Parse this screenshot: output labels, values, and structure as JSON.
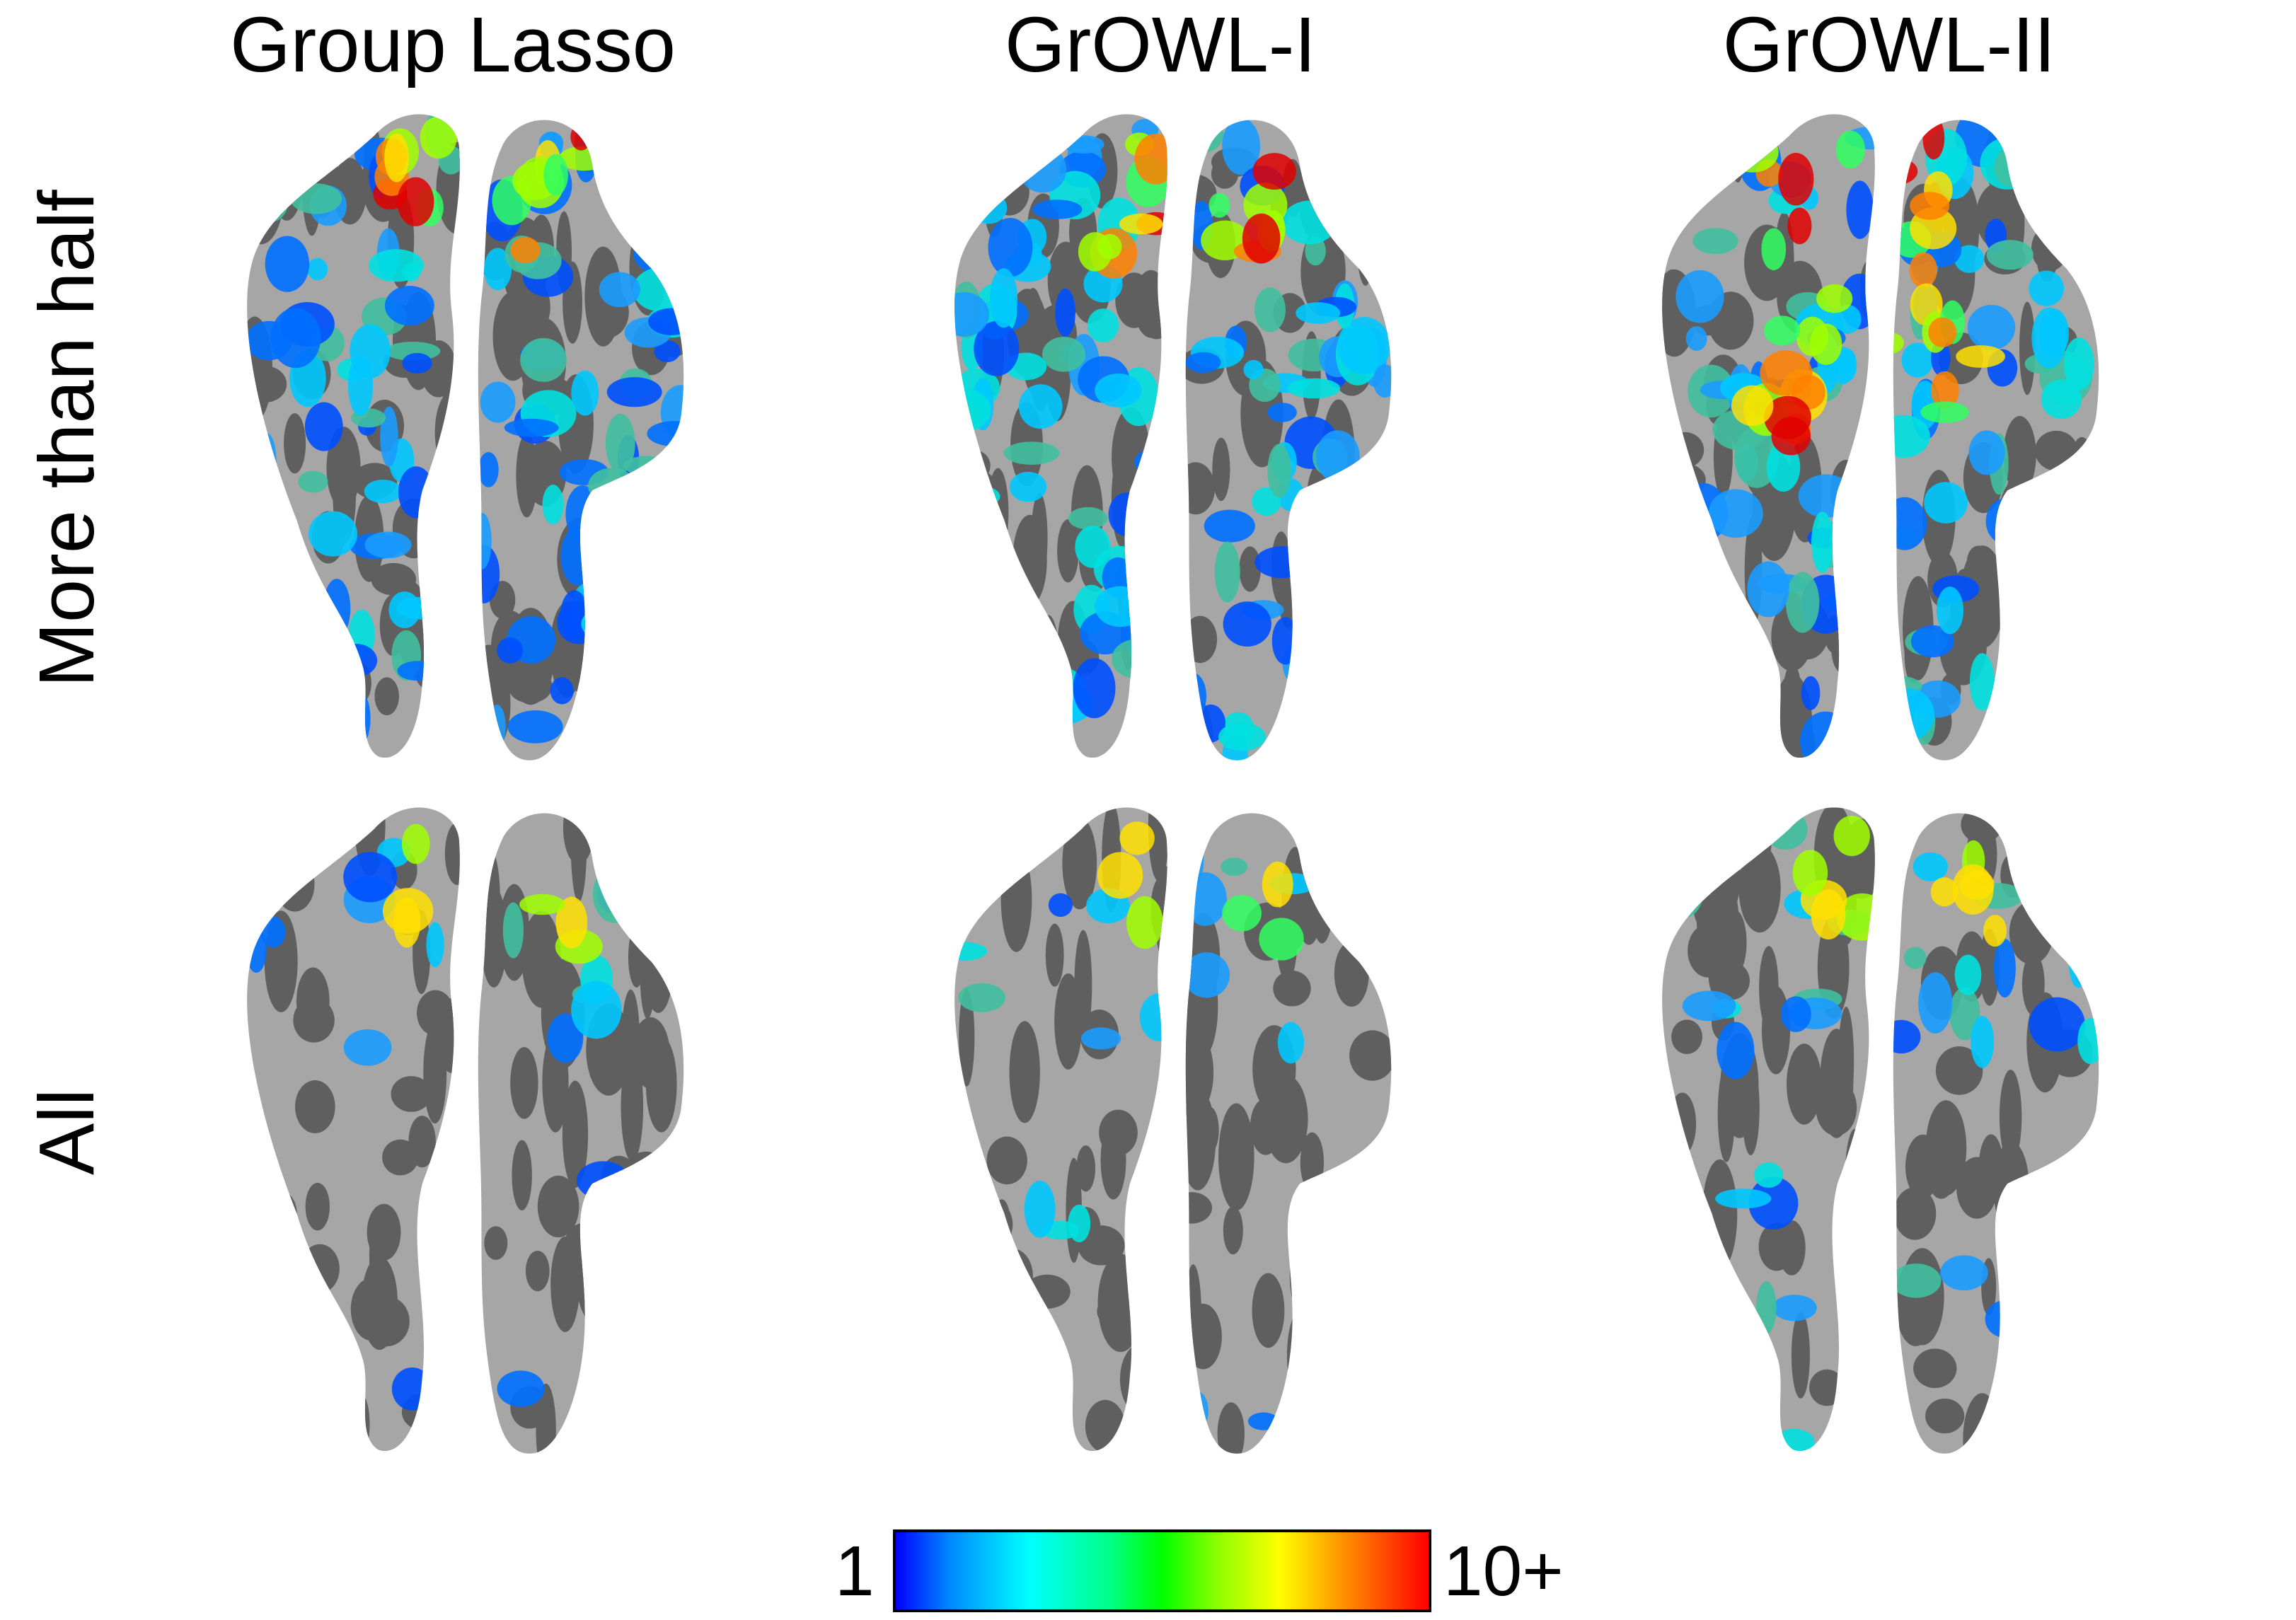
{
  "columns": [
    "Group Lasso",
    "GrOWL-I",
    "GrOWL-II"
  ],
  "rows": [
    "More than half",
    "All"
  ],
  "colorbar": {
    "min_label": "1",
    "max_label": "10+",
    "colors": [
      "#0000ff",
      "#00ffff",
      "#00ff00",
      "#ffff00",
      "#ff0000"
    ]
  },
  "surface_colors": {
    "gyri": "#a6a6a6",
    "sulci": "#5f5f5f"
  },
  "colors": {
    "background": "#ffffff",
    "text": "#000000"
  }
}
